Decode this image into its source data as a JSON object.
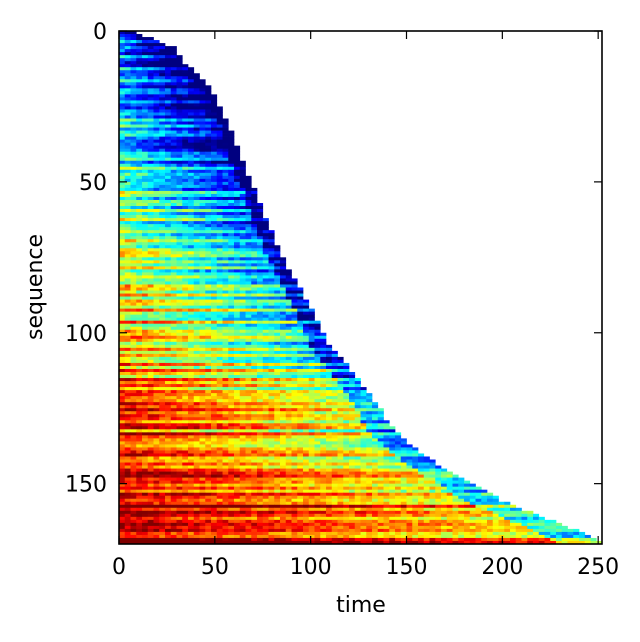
{
  "chart_data": {
    "type": "heatmap",
    "title": "",
    "xlabel": "time",
    "ylabel": "sequence",
    "xlim": [
      0,
      252
    ],
    "ylim": [
      170,
      0
    ],
    "x_ticks": [
      0,
      50,
      100,
      150,
      200,
      250
    ],
    "y_ticks": [
      0,
      50,
      100,
      150
    ],
    "x_tick_labels": [
      "0",
      "50",
      "100",
      "150",
      "200",
      "250"
    ],
    "y_tick_labels": [
      "0",
      "50",
      "100",
      "150"
    ],
    "colormap": "jet",
    "grid": false,
    "legend": "none",
    "sequence_count": 170,
    "sequence_length_profile": [
      [
        0,
        8
      ],
      [
        5,
        28
      ],
      [
        10,
        33
      ],
      [
        15,
        42
      ],
      [
        20,
        48
      ],
      [
        25,
        52
      ],
      [
        30,
        56
      ],
      [
        35,
        59
      ],
      [
        40,
        62
      ],
      [
        45,
        65
      ],
      [
        50,
        68
      ],
      [
        55,
        72
      ],
      [
        60,
        74
      ],
      [
        65,
        78
      ],
      [
        70,
        81
      ],
      [
        75,
        85
      ],
      [
        80,
        89
      ],
      [
        85,
        94
      ],
      [
        90,
        98
      ],
      [
        95,
        102
      ],
      [
        100,
        106
      ],
      [
        105,
        110
      ],
      [
        110,
        118
      ],
      [
        115,
        124
      ],
      [
        120,
        130
      ],
      [
        125,
        136
      ],
      [
        130,
        140
      ],
      [
        135,
        148
      ],
      [
        140,
        158
      ],
      [
        145,
        170
      ],
      [
        150,
        186
      ],
      [
        155,
        198
      ],
      [
        160,
        218
      ],
      [
        165,
        238
      ],
      [
        169,
        252
      ]
    ]
  }
}
